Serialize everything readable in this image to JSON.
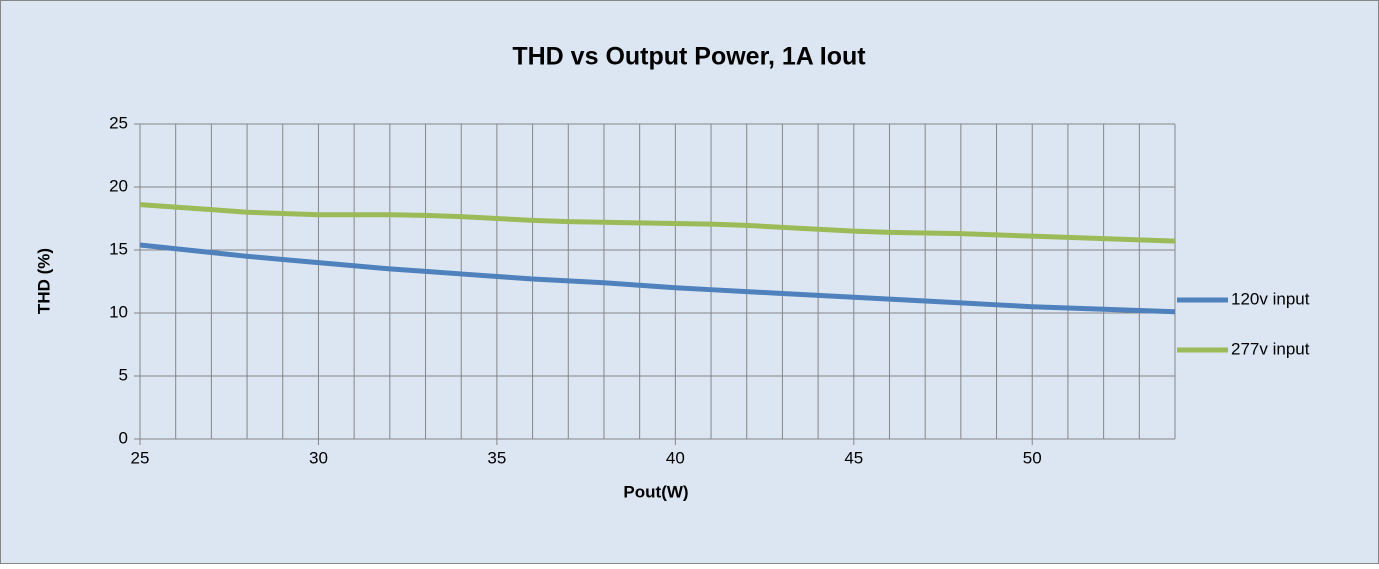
{
  "chart_data": {
    "type": "line",
    "title": "THD vs Output Power, 1A Iout",
    "x_label": "Pout(W)",
    "y_label": "THD (%)",
    "x": [
      25,
      26,
      27,
      28,
      29,
      30,
      31,
      32,
      33,
      34,
      35,
      36,
      37,
      38,
      39,
      40,
      41,
      42,
      43,
      44,
      45,
      46,
      47,
      48,
      49,
      50,
      51,
      52,
      53,
      54
    ],
    "series": [
      {
        "name": "120v input",
        "color": "#4f81bd",
        "values": [
          15.4,
          15.1,
          14.8,
          14.5,
          14.25,
          14.0,
          13.75,
          13.5,
          13.3,
          13.1,
          12.9,
          12.7,
          12.55,
          12.4,
          12.2,
          12.0,
          11.85,
          11.7,
          11.55,
          11.4,
          11.25,
          11.1,
          10.95,
          10.8,
          10.65,
          10.5,
          10.4,
          10.3,
          10.2,
          10.1
        ]
      },
      {
        "name": "277v input",
        "color": "#9bbb59",
        "values": [
          18.6,
          18.4,
          18.2,
          18.0,
          17.9,
          17.8,
          17.8,
          17.8,
          17.75,
          17.65,
          17.5,
          17.35,
          17.25,
          17.2,
          17.15,
          17.1,
          17.05,
          16.95,
          16.8,
          16.65,
          16.5,
          16.4,
          16.35,
          16.3,
          16.2,
          16.1,
          16.0,
          15.9,
          15.8,
          15.7
        ]
      }
    ],
    "xlim": [
      25,
      54
    ],
    "xticks": [
      25,
      30,
      35,
      40,
      45,
      50
    ],
    "xminorticks": [
      26,
      27,
      28,
      29,
      31,
      32,
      33,
      34,
      36,
      37,
      38,
      39,
      41,
      42,
      43,
      44,
      46,
      47,
      48,
      49,
      51,
      52,
      53,
      54
    ],
    "ylim": [
      0,
      25
    ],
    "yticks": [
      0,
      5,
      10,
      15,
      20,
      25
    ],
    "grid": true,
    "legend": "right"
  }
}
